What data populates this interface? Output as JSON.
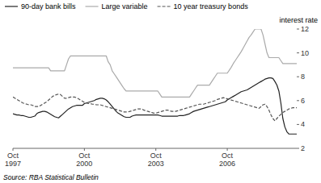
{
  "chart_data": {
    "type": "line",
    "ylabel": "interest rate",
    "source": "Source: RBA Statistical Bulletin",
    "ylim": [
      2,
      12
    ],
    "yticks": [
      2,
      4,
      6,
      8,
      10,
      12
    ],
    "grid": false,
    "legend": "top",
    "categories": [
      "Oct\n1997",
      null,
      null,
      null,
      null,
      null,
      null,
      null,
      null,
      null,
      null,
      null,
      null,
      null,
      null,
      null,
      null,
      null,
      null,
      null,
      null,
      null,
      null,
      null,
      null,
      null,
      null,
      null,
      null,
      null,
      null,
      null,
      null,
      null,
      null,
      null,
      "Oct\n2000",
      null,
      null,
      null,
      null,
      null,
      null,
      null,
      null,
      null,
      null,
      null,
      null,
      null,
      null,
      null,
      null,
      null,
      null,
      null,
      null,
      null,
      null,
      null,
      null,
      null,
      null,
      null,
      null,
      null,
      null,
      null,
      null,
      null,
      null,
      null,
      "Oct\n2003",
      null,
      null,
      null,
      null,
      null,
      null,
      null,
      null,
      null,
      null,
      null,
      null,
      null,
      null,
      null,
      null,
      null,
      null,
      null,
      null,
      null,
      null,
      null,
      null,
      null,
      null,
      null,
      null,
      null,
      null,
      null,
      null,
      null,
      null,
      null,
      "Oct\n2006",
      null,
      null,
      null,
      null,
      null,
      null,
      null,
      null,
      null,
      null,
      null,
      null,
      null,
      null,
      null,
      null,
      null,
      null,
      null,
      null,
      null,
      null,
      null,
      null,
      null,
      null,
      null,
      null,
      null,
      null,
      null,
      null,
      null,
      null,
      null
    ],
    "series": [
      {
        "name": "90-day bank bills",
        "color": "#222222",
        "line_style": "solid",
        "values": [
          4.9,
          4.85,
          4.8,
          4.8,
          4.75,
          4.75,
          4.7,
          4.65,
          4.6,
          4.6,
          4.65,
          4.7,
          4.9,
          5.0,
          5.05,
          5.1,
          5.1,
          5.05,
          4.95,
          4.85,
          4.75,
          4.65,
          4.6,
          4.55,
          4.7,
          4.85,
          5.0,
          5.15,
          5.3,
          5.4,
          5.5,
          5.55,
          5.6,
          5.6,
          5.6,
          5.6,
          5.75,
          5.8,
          5.85,
          5.9,
          5.95,
          6.0,
          6.1,
          6.15,
          6.2,
          6.2,
          6.15,
          6.05,
          5.9,
          5.7,
          5.5,
          5.3,
          5.1,
          4.95,
          4.85,
          4.75,
          4.65,
          4.6,
          4.6,
          4.6,
          4.7,
          4.75,
          4.8,
          4.8,
          4.8,
          4.8,
          4.8,
          4.8,
          4.8,
          4.8,
          4.8,
          4.8,
          4.8,
          4.8,
          4.75,
          4.7,
          4.7,
          4.7,
          4.7,
          4.7,
          4.7,
          4.7,
          4.7,
          4.7,
          4.75,
          4.75,
          4.75,
          4.8,
          4.85,
          4.9,
          5.0,
          5.1,
          5.15,
          5.2,
          5.25,
          5.3,
          5.35,
          5.4,
          5.45,
          5.5,
          5.55,
          5.6,
          5.65,
          5.7,
          5.75,
          5.8,
          5.85,
          5.9,
          6.05,
          6.15,
          6.25,
          6.35,
          6.45,
          6.55,
          6.65,
          6.75,
          6.8,
          6.85,
          6.9,
          7.0,
          7.1,
          7.2,
          7.3,
          7.4,
          7.5,
          7.6,
          7.7,
          7.8,
          7.85,
          7.9,
          7.9,
          7.85,
          7.6,
          7.3,
          6.8,
          5.8,
          4.5,
          3.8,
          3.4,
          3.2,
          3.2,
          3.2,
          3.2,
          3.2
        ]
      },
      {
        "name": "Large variable",
        "color": "#aaaaaa",
        "line_style": "solid",
        "values": [
          8.75,
          8.75,
          8.75,
          8.75,
          8.75,
          8.75,
          8.75,
          8.75,
          8.75,
          8.75,
          8.75,
          8.75,
          8.75,
          8.75,
          8.75,
          8.75,
          8.75,
          8.75,
          8.75,
          8.5,
          8.5,
          8.5,
          8.5,
          8.5,
          8.5,
          8.5,
          8.5,
          9.0,
          9.5,
          9.75,
          9.75,
          9.75,
          9.75,
          9.75,
          9.75,
          9.75,
          9.75,
          9.75,
          9.75,
          9.75,
          9.75,
          9.75,
          9.75,
          9.75,
          9.75,
          9.75,
          9.75,
          9.75,
          9.25,
          9.0,
          8.5,
          8.25,
          8.0,
          7.75,
          7.5,
          7.25,
          7.0,
          6.8,
          6.8,
          6.8,
          6.8,
          6.8,
          6.8,
          6.8,
          6.8,
          6.8,
          6.8,
          6.8,
          6.8,
          6.8,
          6.8,
          6.8,
          6.8,
          6.8,
          6.55,
          6.3,
          6.3,
          6.3,
          6.3,
          6.3,
          6.3,
          6.3,
          6.3,
          6.3,
          6.3,
          6.3,
          6.3,
          6.3,
          6.3,
          6.3,
          6.55,
          6.8,
          7.05,
          7.3,
          7.3,
          7.3,
          7.3,
          7.3,
          7.3,
          7.3,
          7.55,
          7.8,
          8.05,
          8.3,
          8.3,
          8.3,
          8.3,
          8.3,
          8.3,
          8.55,
          8.8,
          9.1,
          9.35,
          9.6,
          9.85,
          10.1,
          10.4,
          10.7,
          11.0,
          11.3,
          11.5,
          11.75,
          12.0,
          12.0,
          12.0,
          12.0,
          11.5,
          10.75,
          10.0,
          9.6,
          9.6,
          9.6,
          9.6,
          9.6,
          9.6,
          9.35,
          9.1,
          9.1,
          9.1,
          9.1,
          9.1,
          9.1,
          9.1,
          9.1
        ]
      },
      {
        "name": "10 year treasury bonds",
        "color": "#555555",
        "line_style": "dashed",
        "values": [
          6.3,
          6.2,
          6.1,
          6.0,
          5.9,
          5.8,
          5.75,
          5.7,
          5.65,
          5.65,
          5.6,
          5.5,
          5.5,
          5.5,
          5.6,
          5.7,
          5.8,
          5.9,
          6.05,
          6.2,
          6.35,
          6.45,
          6.5,
          6.55,
          6.5,
          6.35,
          6.2,
          6.2,
          6.25,
          6.3,
          6.3,
          6.3,
          6.25,
          6.15,
          6.05,
          5.95,
          5.85,
          5.8,
          5.75,
          5.75,
          5.7,
          5.7,
          5.65,
          5.65,
          5.65,
          5.6,
          5.55,
          5.5,
          5.45,
          5.4,
          5.35,
          5.3,
          5.25,
          5.2,
          5.15,
          5.1,
          5.05,
          5.05,
          5.05,
          5.1,
          5.15,
          5.2,
          5.25,
          5.3,
          5.3,
          5.3,
          5.2,
          5.15,
          5.1,
          5.05,
          5.0,
          4.95,
          4.95,
          5.0,
          5.05,
          5.1,
          5.15,
          5.2,
          5.2,
          5.15,
          5.1,
          5.1,
          5.1,
          5.15,
          5.2,
          5.25,
          5.3,
          5.35,
          5.4,
          5.45,
          5.5,
          5.55,
          5.6,
          5.65,
          5.7,
          5.7,
          5.7,
          5.75,
          5.8,
          5.85,
          5.9,
          5.95,
          6.0,
          6.1,
          6.15,
          6.2,
          6.25,
          6.2,
          6.15,
          6.1,
          6.05,
          6.0,
          5.95,
          5.9,
          5.85,
          5.8,
          5.75,
          5.7,
          5.65,
          5.6,
          5.55,
          5.5,
          5.45,
          5.4,
          5.35,
          5.5,
          5.65,
          5.7,
          5.5,
          5.2,
          4.8,
          4.5,
          4.3,
          4.5,
          4.7,
          4.85,
          5.0,
          5.1,
          5.2,
          5.3,
          5.35,
          5.4,
          5.4,
          5.4
        ]
      }
    ]
  }
}
